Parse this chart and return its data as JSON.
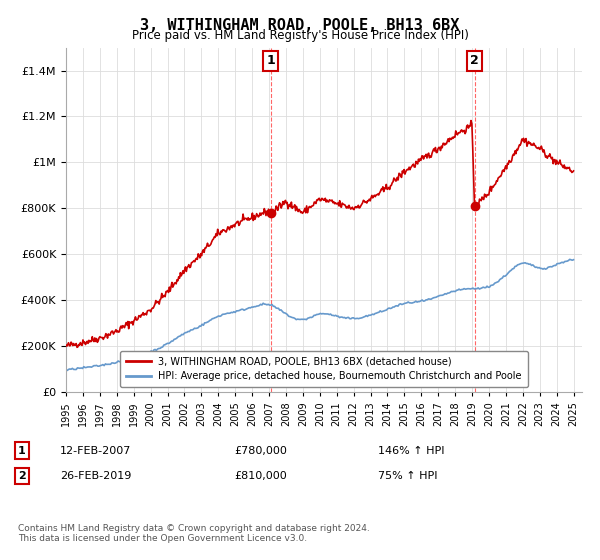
{
  "title": "3, WITHINGHAM ROAD, POOLE, BH13 6BX",
  "subtitle": "Price paid vs. HM Land Registry's House Price Index (HPI)",
  "legend_line1": "3, WITHINGHAM ROAD, POOLE, BH13 6BX (detached house)",
  "legend_line2": "HPI: Average price, detached house, Bournemouth Christchurch and Poole",
  "annotation1_label": "1",
  "annotation1_date": "12-FEB-2007",
  "annotation1_price": "£780,000",
  "annotation1_hpi": "146% ↑ HPI",
  "annotation2_label": "2",
  "annotation2_date": "26-FEB-2019",
  "annotation2_price": "£810,000",
  "annotation2_hpi": "75% ↑ HPI",
  "footer": "Contains HM Land Registry data © Crown copyright and database right 2024.\nThis data is licensed under the Open Government Licence v3.0.",
  "hpi_color": "#6699cc",
  "price_color": "#cc0000",
  "vline_color": "#ff6666",
  "dot_color": "#cc0000",
  "ylim": [
    0,
    1500000
  ],
  "yticks": [
    0,
    200000,
    400000,
    600000,
    800000,
    1000000,
    1200000,
    1400000
  ],
  "sale1_year": 2007.1,
  "sale1_price": 780000,
  "sale2_year": 2019.15,
  "sale2_price": 810000,
  "hpi_years": [
    1995,
    1996,
    1997,
    1998,
    1999,
    2000,
    2001,
    2002,
    2003,
    2004,
    2005,
    2006,
    2007,
    2008,
    2009,
    2010,
    2011,
    2012,
    2013,
    2014,
    2015,
    2016,
    2017,
    2018,
    2019,
    2020,
    2021,
    2022,
    2023,
    2024,
    2025
  ],
  "hpi_values": [
    95000,
    105000,
    115000,
    130000,
    150000,
    175000,
    210000,
    255000,
    290000,
    330000,
    350000,
    370000,
    380000,
    340000,
    315000,
    340000,
    330000,
    320000,
    335000,
    360000,
    385000,
    395000,
    415000,
    440000,
    450000,
    460000,
    510000,
    560000,
    540000,
    555000,
    575000
  ],
  "prop_years": [
    1995,
    1996,
    1997,
    1998,
    1999,
    2000,
    2001,
    2002,
    2003,
    2004,
    2005,
    2006,
    2007.0,
    2007.12,
    2007.5,
    2008,
    2009,
    2010,
    2011,
    2012,
    2013,
    2014,
    2015,
    2016,
    2017,
    2018,
    2019.0,
    2019.15,
    2019.5,
    2020,
    2021,
    2022,
    2023,
    2024,
    2025
  ],
  "prop_values": [
    200000,
    215000,
    235000,
    265000,
    310000,
    360000,
    435000,
    530000,
    600000,
    690000,
    730000,
    760000,
    790000,
    780000,
    800000,
    830000,
    780000,
    840000,
    820000,
    800000,
    840000,
    890000,
    960000,
    1010000,
    1060000,
    1120000,
    1160000,
    810000,
    830000,
    870000,
    980000,
    1100000,
    1060000,
    1000000,
    960000
  ]
}
